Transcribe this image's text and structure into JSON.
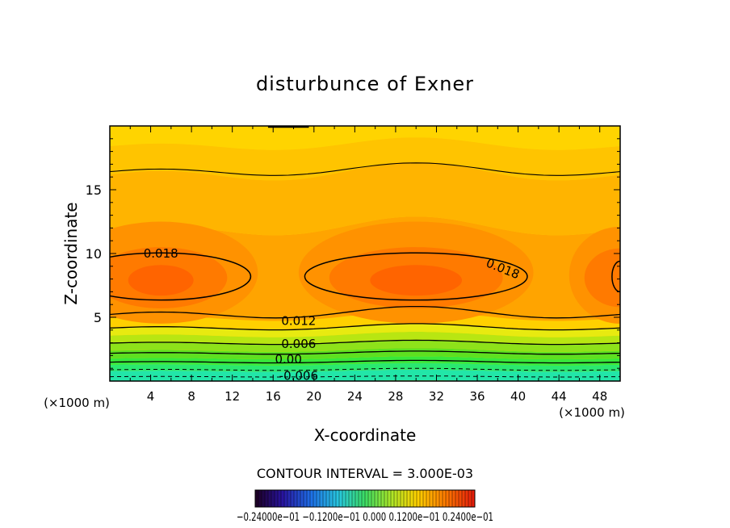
{
  "chart_data": {
    "type": "contour",
    "title": "disturbunce of Exner",
    "xlabel": "X-coordinate",
    "ylabel": "Z-coordinate",
    "x_unit_left": "(×1000 m)",
    "x_unit_right": "(×1000 m)",
    "xlim": [
      0,
      50
    ],
    "ylim": [
      0,
      20
    ],
    "xticks": [
      4,
      8,
      12,
      16,
      20,
      24,
      28,
      32,
      36,
      40,
      44,
      48
    ],
    "yticks": [
      5,
      10,
      15
    ],
    "grid": false,
    "contour_interval_text": "CONTOUR INTERVAL = 3.000E-03",
    "contour_labels": [
      {
        "text": "0.018",
        "x": 5,
        "y": 10.0
      },
      {
        "text": "0.018",
        "x": 38.5,
        "y": 8.8
      },
      {
        "text": "0.012",
        "x": 18.5,
        "y": 4.7
      },
      {
        "text": "0.006",
        "x": 18.5,
        "y": 2.9
      },
      {
        "text": "0.00",
        "x": 17.5,
        "y": 1.7
      },
      {
        "text": "-0.006",
        "x": 18.5,
        "y": 0.4
      }
    ],
    "colorbar_labels": [
      "−0.2400e−01",
      "−0.1200e−01",
      "0.000",
      "0.1200e−01",
      "0.2400e−01"
    ],
    "colorbar_label_text": "−0.24000e−01 −0.1200e−01 0.000 0.1200e−01 0.2400e−01",
    "colorbar_range": [
      -0.024,
      0.024
    ]
  }
}
